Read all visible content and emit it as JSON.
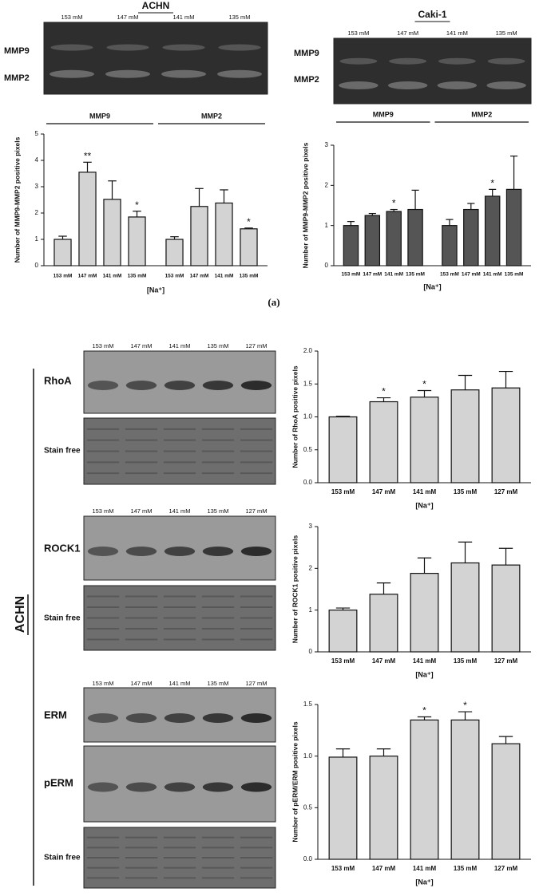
{
  "figure_label": "(a)",
  "side_label": "ACHN",
  "blots": [
    {
      "title": "ACHN",
      "lanes": [
        "153 mM",
        "147 mM",
        "141 mM",
        "135 mM"
      ],
      "rows": [
        "MMP9",
        "MMP2"
      ]
    },
    {
      "title": "Caki-1",
      "lanes": [
        "153 mM",
        "147 mM",
        "141 mM",
        "135 mM"
      ],
      "rows": [
        "MMP9",
        "MMP2"
      ]
    },
    {
      "lanes": [
        "153 mM",
        "147 mM",
        "141 mM",
        "135 mM",
        "127 mM"
      ],
      "rows": [
        "RhoA",
        "Stain free"
      ]
    },
    {
      "lanes": [
        "153 mM",
        "147 mM",
        "141 mM",
        "135 mM",
        "127 mM"
      ],
      "rows": [
        "ROCK1",
        "Stain free"
      ]
    },
    {
      "lanes": [
        "153 mM",
        "147 mM",
        "141 mM",
        "135 mM",
        "127 mM"
      ],
      "rows": [
        "ERM",
        "pERM",
        "Stain free"
      ]
    }
  ],
  "chart_data": [
    {
      "type": "bar",
      "y_label": "Number of MMP9-MMP2 positive pixels",
      "x_label": "[Na⁺]",
      "categories": [
        "153 mM",
        "147 mM",
        "141 mM",
        "135 mM"
      ],
      "series": [
        {
          "name": "MMP9",
          "color": "#d3d3d3",
          "values": [
            1.0,
            3.55,
            2.52,
            1.85
          ],
          "errors": [
            0.12,
            0.38,
            0.7,
            0.22
          ],
          "annotations": [
            null,
            "**",
            null,
            "*"
          ]
        },
        {
          "name": "MMP2",
          "color": "#d3d3d3",
          "values": [
            1.0,
            2.25,
            2.38,
            1.4
          ],
          "errors": [
            0.1,
            0.68,
            0.5,
            0.03
          ],
          "annotations": [
            null,
            null,
            null,
            "*"
          ]
        }
      ],
      "ylim": [
        0,
        5
      ],
      "yticks": [
        0,
        1,
        2,
        3,
        4,
        5
      ]
    },
    {
      "type": "bar",
      "y_label": "Number of MMP9-MMP2 positive pixels",
      "x_label": "[Na⁺]",
      "categories": [
        "153 mM",
        "147 mM",
        "141 mM",
        "135 mM"
      ],
      "series": [
        {
          "name": "MMP9",
          "color": "#555555",
          "values": [
            1.0,
            1.25,
            1.35,
            1.4
          ],
          "errors": [
            0.1,
            0.05,
            0.05,
            0.48
          ],
          "annotations": [
            null,
            null,
            "*",
            null
          ]
        },
        {
          "name": "MMP2",
          "color": "#555555",
          "values": [
            1.0,
            1.4,
            1.73,
            1.9
          ],
          "errors": [
            0.15,
            0.15,
            0.17,
            0.83
          ],
          "annotations": [
            null,
            null,
            "*",
            null
          ]
        }
      ],
      "ylim": [
        0,
        3
      ],
      "yticks": [
        0,
        1,
        2,
        3
      ]
    },
    {
      "type": "bar",
      "y_label": "Number of RhoA positive pixels",
      "x_label": "[Na⁺]",
      "categories": [
        "153 mM",
        "147 mM",
        "141 mM",
        "135 mM",
        "127 mM"
      ],
      "color": "#d3d3d3",
      "values": [
        1.0,
        1.23,
        1.3,
        1.41,
        1.44
      ],
      "errors": [
        0.01,
        0.06,
        0.1,
        0.22,
        0.25
      ],
      "annotations": [
        null,
        "*",
        "*",
        null,
        null
      ],
      "ylim": [
        0,
        2
      ],
      "yticks": [
        {
          "value": 0,
          "label": "0.0"
        },
        {
          "value": 0.5,
          "label": "0.5"
        },
        {
          "value": 1,
          "label": "1.0"
        },
        {
          "value": 1.5,
          "label": "1.5"
        },
        {
          "value": 2,
          "label": "2.0"
        }
      ]
    },
    {
      "type": "bar",
      "y_label": "Number of ROCK1 positive pixels",
      "x_label": "[Na⁺]",
      "categories": [
        "153 mM",
        "147 mM",
        "141 mM",
        "135 mM",
        "127 mM"
      ],
      "color": "#d3d3d3",
      "values": [
        1.0,
        1.38,
        1.88,
        2.13,
        2.08
      ],
      "errors": [
        0.05,
        0.27,
        0.37,
        0.5,
        0.4
      ],
      "ylim": [
        0,
        3
      ],
      "yticks": [
        0,
        1,
        2,
        3
      ]
    },
    {
      "type": "bar",
      "y_label": "Number of pERM/ERM positive pixels",
      "x_label": "[Na⁺]",
      "categories": [
        "153 mM",
        "147 mM",
        "141 mM",
        "135 mM",
        "127 mM"
      ],
      "color": "#d3d3d3",
      "values": [
        0.99,
        1.0,
        1.35,
        1.35,
        1.12
      ],
      "errors": [
        0.08,
        0.07,
        0.03,
        0.08,
        0.07
      ],
      "annotations": [
        null,
        null,
        "*",
        "*",
        null
      ],
      "ylim": [
        0,
        1.5
      ],
      "yticks": [
        {
          "value": 0,
          "label": "0.0"
        },
        {
          "value": 0.5,
          "label": "0.5"
        },
        {
          "value": 1,
          "label": "1.0"
        },
        {
          "value": 1.5,
          "label": "1.5"
        }
      ]
    }
  ]
}
